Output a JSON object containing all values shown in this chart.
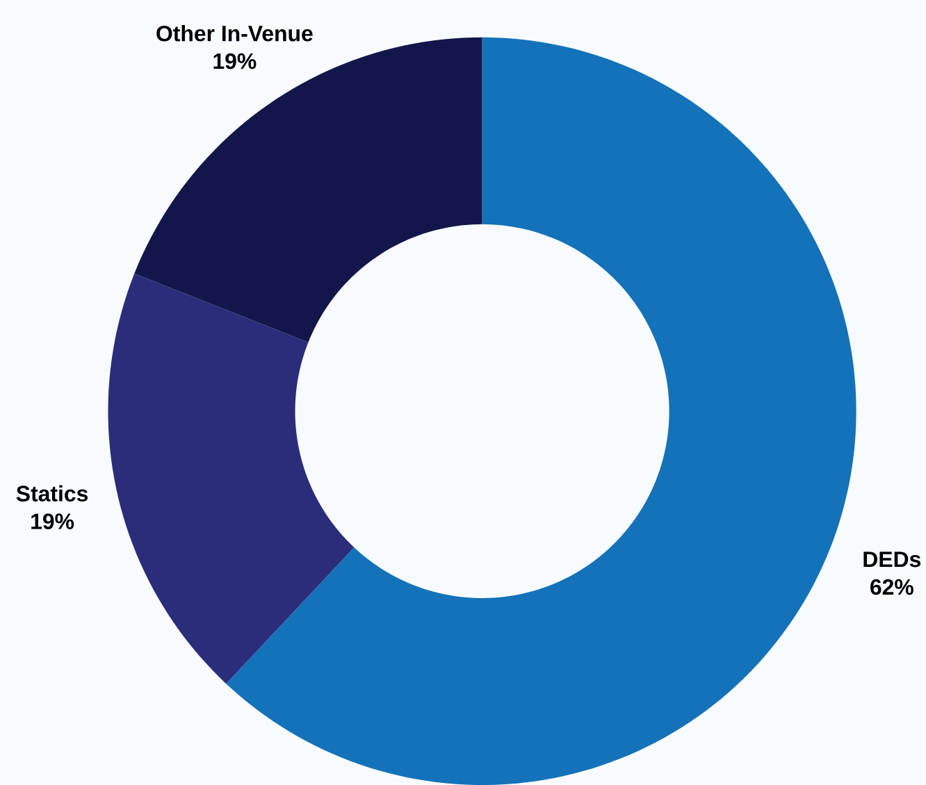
{
  "chart_data": {
    "type": "donut",
    "categories": [
      "DEDs",
      "Statics",
      "Other In-Venue"
    ],
    "values": [
      62,
      19,
      19
    ],
    "colors": [
      "#1372b9",
      "#2b2d7a",
      "#12164a"
    ],
    "value_labels": [
      "62%",
      "19%",
      "19%"
    ]
  }
}
